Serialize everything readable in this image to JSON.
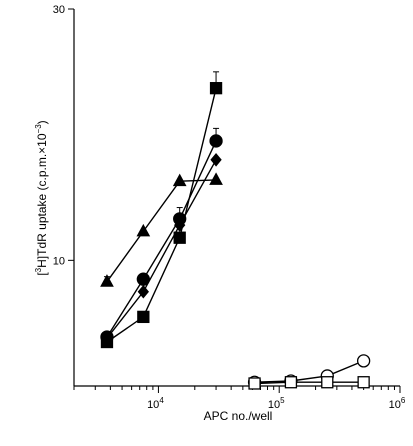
{
  "chart_data": {
    "type": "scatter",
    "xscale": "log",
    "xlim": [
      2000,
      1000000
    ],
    "ylim": [
      0,
      30
    ],
    "grid": false,
    "legend": "none",
    "xlabel": "APC no./well",
    "ylabel_parts": {
      "pre": "[",
      "sup1": "3",
      "mid": "H]TdR uptake (c.p.m.×10",
      "sup2": "−3",
      "post": ")"
    },
    "ytick_labels": [
      {
        "value": 10,
        "label": "10"
      },
      {
        "value": 30,
        "label": "30"
      }
    ],
    "xtick_labels": [
      {
        "value": 10000,
        "base": "10",
        "exp": "4"
      },
      {
        "value": 100000,
        "base": "10",
        "exp": "5"
      },
      {
        "value": 1000000,
        "base": "10",
        "exp": "6"
      }
    ],
    "series": [
      {
        "marker": "square-filled",
        "color": "#000000",
        "points": [
          {
            "x": 3750,
            "y": 3.5
          },
          {
            "x": 7500,
            "y": 5.5
          },
          {
            "x": 15000,
            "y": 11.8
          },
          {
            "x": 30000,
            "y": 23.7,
            "err": 1.3
          }
        ]
      },
      {
        "marker": "circle-filled",
        "color": "#000000",
        "points": [
          {
            "x": 3750,
            "y": 3.9
          },
          {
            "x": 7500,
            "y": 8.5
          },
          {
            "x": 15000,
            "y": 13.3,
            "err": 0.9
          },
          {
            "x": 30000,
            "y": 19.5,
            "err": 1.0
          }
        ]
      },
      {
        "marker": "diamond-filled",
        "color": "#000000",
        "points": [
          {
            "x": 3750,
            "y": 3.8
          },
          {
            "x": 7500,
            "y": 7.5
          },
          {
            "x": 15000,
            "y": 12.8
          },
          {
            "x": 30000,
            "y": 18.0
          }
        ]
      },
      {
        "marker": "triangle-filled",
        "color": "#000000",
        "points": [
          {
            "x": 3750,
            "y": 8.3,
            "err": 0.4
          },
          {
            "x": 7500,
            "y": 12.3
          },
          {
            "x": 15000,
            "y": 16.3
          },
          {
            "x": 30000,
            "y": 16.4
          }
        ]
      },
      {
        "marker": "circle-open",
        "color": "#000000",
        "points": [
          {
            "x": 62500,
            "y": 0.3
          },
          {
            "x": 125000,
            "y": 0.4
          },
          {
            "x": 250000,
            "y": 0.8
          },
          {
            "x": 500000,
            "y": 2.0
          }
        ]
      },
      {
        "marker": "square-open",
        "color": "#000000",
        "points": [
          {
            "x": 62500,
            "y": 0.2
          },
          {
            "x": 125000,
            "y": 0.3
          },
          {
            "x": 250000,
            "y": 0.3
          },
          {
            "x": 500000,
            "y": 0.3
          }
        ]
      }
    ]
  }
}
